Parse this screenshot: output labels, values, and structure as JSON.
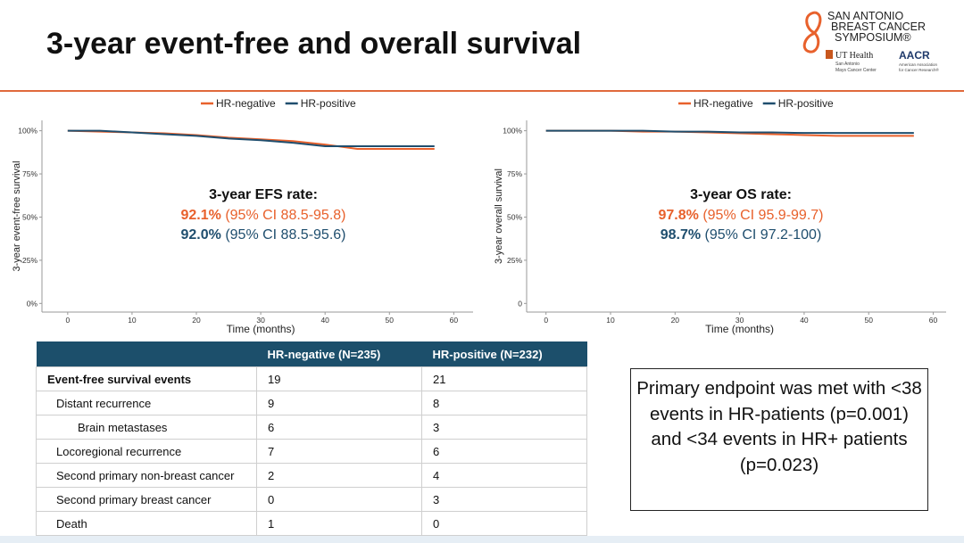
{
  "header": {
    "title": "3-year event-free and overall survival",
    "logo": {
      "line1": "SAN ANTONIO",
      "line2": "BREAST CANCER",
      "line3": "SYMPOSIUM®",
      "ut": "UT Health",
      "ut_sub1": "San Antonio",
      "ut_sub2": "Mays Cancer Center",
      "aacr": "AACR",
      "aacr_sub1": "American Association",
      "aacr_sub2": "for Cancer Research®"
    }
  },
  "chart_data": [
    {
      "type": "line",
      "ylabel": "3-year event-free survival",
      "xlabel": "Time (months)",
      "x": [
        0,
        5,
        10,
        15,
        20,
        25,
        30,
        35,
        40,
        45,
        50,
        55,
        57
      ],
      "series": [
        {
          "name": "HR-negative",
          "color": "#e8612c",
          "values": [
            100,
            99.5,
            99,
            98.5,
            97.5,
            96,
            95,
            94,
            92,
            89.5,
            89.5,
            89.5,
            89.5
          ]
        },
        {
          "name": "HR-positive",
          "color": "#1f4e6e",
          "values": [
            100,
            100,
            99,
            98,
            97,
            95.5,
            94.5,
            93,
            91,
            91,
            91,
            91,
            91
          ]
        }
      ],
      "xlim": [
        -4,
        63
      ],
      "ylim": [
        -5,
        106
      ],
      "xticks": [
        0,
        10,
        20,
        30,
        40,
        50,
        60
      ],
      "yticks": [
        {
          "value": 0,
          "label": "0%"
        },
        {
          "value": 25,
          "label": "25%"
        },
        {
          "value": 50,
          "label": "50%"
        },
        {
          "value": 75,
          "label": "75%"
        },
        {
          "value": 100,
          "label": "100%"
        }
      ],
      "annotation": {
        "title": "3-year EFS rate:",
        "rates": [
          {
            "rate": "92.1%",
            "ci": "(95% CI 88.5-95.8)"
          },
          {
            "rate": "92.0%",
            "ci": "(95% CI 88.5-95.6)"
          }
        ]
      }
    },
    {
      "type": "line",
      "ylabel": "3-year overall survival",
      "xlabel": "Time (months)",
      "x": [
        0,
        5,
        10,
        15,
        20,
        25,
        30,
        35,
        40,
        45,
        50,
        55,
        57
      ],
      "series": [
        {
          "name": "HR-negative",
          "color": "#e8612c",
          "values": [
            100,
            100,
            100,
            99.5,
            99.5,
            99,
            98.5,
            98,
            97.5,
            97,
            97,
            97,
            97
          ]
        },
        {
          "name": "HR-positive",
          "color": "#1f4e6e",
          "values": [
            100,
            100,
            100,
            100,
            99.5,
            99.5,
            99,
            99,
            98.7,
            98.7,
            98.7,
            98.7,
            98.7
          ]
        }
      ],
      "xlim": [
        -3,
        62
      ],
      "ylim": [
        -5,
        106
      ],
      "xticks": [
        0,
        10,
        20,
        30,
        40,
        50,
        60
      ],
      "yticks": [
        0,
        {
          "value": 25,
          "label": "25%"
        },
        {
          "value": 50,
          "label": "50%"
        },
        {
          "value": 75,
          "label": "75%"
        },
        {
          "value": 100,
          "label": "100%"
        }
      ],
      "annotation": {
        "title": "3-year OS rate:",
        "rates": [
          {
            "rate": "97.8%",
            "ci": "(95% CI 95.9-99.7)"
          },
          {
            "rate": "98.7%",
            "ci": "(95% CI 97.2-100)"
          }
        ]
      }
    }
  ],
  "table": {
    "columns": [
      "HR-negative (N=235)",
      "HR-positive (N=232)"
    ],
    "rows": [
      {
        "label": "Event-free survival events",
        "values": [
          19,
          21
        ]
      },
      {
        "label": "Distant recurrence",
        "values": [
          9,
          8
        ]
      },
      {
        "label": "Brain metastases",
        "values": [
          6,
          3
        ]
      },
      {
        "label": "Locoregional recurrence",
        "values": [
          7,
          6
        ]
      },
      {
        "label": "Second primary non-breast cancer",
        "values": [
          2,
          4
        ]
      },
      {
        "label": "Second primary breast cancer",
        "values": [
          0,
          3
        ]
      },
      {
        "label": "Death",
        "values": [
          1,
          0
        ]
      }
    ]
  },
  "callout": "Primary endpoint was met with <38 events in HR-patients (p=0.001) and <34 events in HR+ patients (p=0.023)"
}
